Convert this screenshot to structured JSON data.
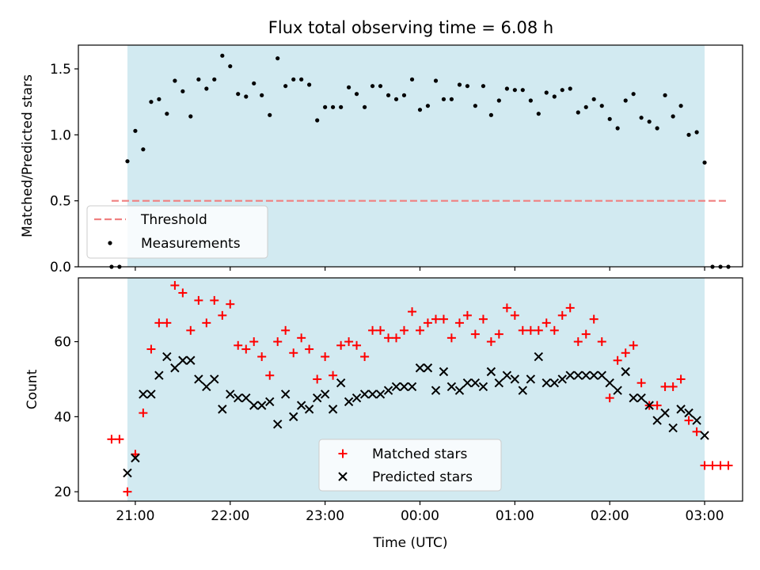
{
  "title": "Flux total observing time = 6.08 h",
  "chart_data": [
    {
      "type": "scatter",
      "name": "ratio-panel",
      "ylabel": "Matched/Predicted stars",
      "xlabel": "",
      "xlim": [
        -0.6,
        6.4
      ],
      "ylim": [
        0,
        1.68
      ],
      "yticks": [
        0.0,
        0.5,
        1.0,
        1.5
      ],
      "ytick_labels": [
        "0.0",
        "0.5",
        "1.0",
        "1.5"
      ],
      "xticks": [
        0,
        1,
        2,
        3,
        4,
        5,
        6
      ],
      "show_xtick_labels": false,
      "shaded_region": {
        "x0": -0.083,
        "x1": 6.0,
        "color": "#add8e6",
        "opacity": 0.55
      },
      "threshold": {
        "name": "Threshold",
        "y": 0.5,
        "x0": -0.25,
        "x1": 6.25,
        "color": "#f08080"
      },
      "legend": {
        "placement": "lower-left",
        "entries": [
          "Threshold",
          "Measurements"
        ]
      },
      "series": [
        {
          "name": "Measurements",
          "marker": "dot",
          "color": "#000000",
          "x": [
            -0.25,
            -0.167,
            -0.083,
            0,
            0.083,
            0.167,
            0.25,
            0.333,
            0.417,
            0.5,
            0.583,
            0.667,
            0.75,
            0.833,
            0.917,
            1.0,
            1.083,
            1.167,
            1.25,
            1.333,
            1.417,
            1.5,
            1.583,
            1.667,
            1.75,
            1.833,
            1.917,
            2.0,
            2.083,
            2.167,
            2.25,
            2.333,
            2.417,
            2.5,
            2.583,
            2.667,
            2.75,
            2.833,
            2.917,
            3.0,
            3.083,
            3.167,
            3.25,
            3.333,
            3.417,
            3.5,
            3.583,
            3.667,
            3.75,
            3.833,
            3.917,
            4.0,
            4.083,
            4.167,
            4.25,
            4.333,
            4.417,
            4.5,
            4.583,
            4.667,
            4.75,
            4.833,
            4.917,
            5.0,
            5.083,
            5.167,
            5.25,
            5.333,
            5.417,
            5.5,
            5.583,
            5.667,
            5.75,
            5.833,
            5.917,
            6.0,
            6.083,
            6.167,
            6.25
          ],
          "y": [
            0.0,
            0.0,
            0.8,
            1.03,
            0.89,
            1.25,
            1.27,
            1.16,
            1.41,
            1.33,
            1.14,
            1.42,
            1.35,
            1.42,
            1.6,
            1.52,
            1.31,
            1.29,
            1.39,
            1.3,
            1.15,
            1.58,
            1.37,
            1.42,
            1.42,
            1.38,
            1.11,
            1.21,
            1.21,
            1.21,
            1.36,
            1.31,
            1.21,
            1.37,
            1.37,
            1.3,
            1.27,
            1.3,
            1.42,
            1.19,
            1.22,
            1.41,
            1.27,
            1.27,
            1.38,
            1.37,
            1.22,
            1.37,
            1.15,
            1.26,
            1.35,
            1.34,
            1.34,
            1.26,
            1.16,
            1.32,
            1.29,
            1.34,
            1.35,
            1.17,
            1.21,
            1.27,
            1.22,
            1.12,
            1.05,
            1.26,
            1.31,
            1.13,
            1.1,
            1.05,
            1.3,
            1.14,
            1.22,
            1.0,
            1.02,
            0.79,
            0.0,
            0.0,
            0.0
          ]
        }
      ]
    },
    {
      "type": "scatter",
      "name": "count-panel",
      "ylabel": "Count",
      "xlabel": "Time (UTC)",
      "xlim": [
        -0.6,
        6.4
      ],
      "ylim": [
        17.5,
        77
      ],
      "yticks": [
        20,
        40,
        60
      ],
      "ytick_labels": [
        "20",
        "40",
        "60"
      ],
      "xticks": [
        0,
        1,
        2,
        3,
        4,
        5,
        6
      ],
      "xtick_labels": [
        "21:00",
        "22:00",
        "23:00",
        "00:00",
        "01:00",
        "02:00",
        "03:00"
      ],
      "shaded_region": {
        "x0": -0.083,
        "x1": 6.0,
        "color": "#add8e6",
        "opacity": 0.55
      },
      "legend": {
        "placement": "lower-center",
        "entries": [
          "Matched stars",
          "Predicted stars"
        ]
      },
      "series": [
        {
          "name": "Matched stars",
          "marker": "plus",
          "color": "#ff0000",
          "x": [
            -0.25,
            -0.167,
            -0.083,
            0,
            0.083,
            0.167,
            0.25,
            0.333,
            0.417,
            0.5,
            0.583,
            0.667,
            0.75,
            0.833,
            0.917,
            1.0,
            1.083,
            1.167,
            1.25,
            1.333,
            1.417,
            1.5,
            1.583,
            1.667,
            1.75,
            1.833,
            1.917,
            2.0,
            2.083,
            2.167,
            2.25,
            2.333,
            2.417,
            2.5,
            2.583,
            2.667,
            2.75,
            2.833,
            2.917,
            3.0,
            3.083,
            3.167,
            3.25,
            3.333,
            3.417,
            3.5,
            3.583,
            3.667,
            3.75,
            3.833,
            3.917,
            4.0,
            4.083,
            4.167,
            4.25,
            4.333,
            4.417,
            4.5,
            4.583,
            4.667,
            4.75,
            4.833,
            4.917,
            5.0,
            5.083,
            5.167,
            5.25,
            5.333,
            5.417,
            5.5,
            5.583,
            5.667,
            5.75,
            5.833,
            5.917,
            6.0,
            6.083,
            6.167,
            6.25
          ],
          "y": [
            34,
            34,
            20,
            30,
            41,
            58,
            65,
            65,
            75,
            73,
            63,
            71,
            65,
            71,
            67,
            70,
            59,
            58,
            60,
            56,
            51,
            60,
            63,
            57,
            61,
            58,
            50,
            56,
            51,
            59,
            60,
            59,
            56,
            63,
            63,
            61,
            61,
            63,
            68,
            63,
            65,
            66,
            66,
            61,
            65,
            67,
            62,
            66,
            60,
            62,
            69,
            67,
            63,
            63,
            63,
            65,
            63,
            67,
            69,
            60,
            62,
            66,
            60,
            45,
            55,
            57,
            59,
            49,
            43,
            43,
            48,
            48,
            50,
            39,
            36,
            27,
            27,
            27,
            27
          ]
        },
        {
          "name": "Predicted stars",
          "marker": "x",
          "color": "#000000",
          "x": [
            -0.083,
            0,
            0.083,
            0.167,
            0.25,
            0.333,
            0.417,
            0.5,
            0.583,
            0.667,
            0.75,
            0.833,
            0.917,
            1.0,
            1.083,
            1.167,
            1.25,
            1.333,
            1.417,
            1.5,
            1.583,
            1.667,
            1.75,
            1.833,
            1.917,
            2.0,
            2.083,
            2.167,
            2.25,
            2.333,
            2.417,
            2.5,
            2.583,
            2.667,
            2.75,
            2.833,
            2.917,
            3.0,
            3.083,
            3.167,
            3.25,
            3.333,
            3.417,
            3.5,
            3.583,
            3.667,
            3.75,
            3.833,
            3.917,
            4.0,
            4.083,
            4.167,
            4.25,
            4.333,
            4.417,
            4.5,
            4.583,
            4.667,
            4.75,
            4.833,
            4.917,
            5.0,
            5.083,
            5.167,
            5.25,
            5.333,
            5.417,
            5.5,
            5.583,
            5.667,
            5.75,
            5.833,
            5.917,
            6.0
          ],
          "y": [
            25,
            29,
            46,
            46,
            51,
            56,
            53,
            55,
            55,
            50,
            48,
            50,
            42,
            46,
            45,
            45,
            43,
            43,
            44,
            38,
            46,
            40,
            43,
            42,
            45,
            46,
            42,
            49,
            44,
            45,
            46,
            46,
            46,
            47,
            48,
            48,
            48,
            53,
            53,
            47,
            52,
            48,
            47,
            49,
            49,
            48,
            52,
            49,
            51,
            50,
            47,
            50,
            56,
            49,
            49,
            50,
            51,
            51,
            51,
            51,
            51,
            49,
            47,
            52,
            45,
            45,
            43,
            39,
            41,
            37,
            42,
            41,
            39,
            35
          ]
        }
      ]
    }
  ]
}
